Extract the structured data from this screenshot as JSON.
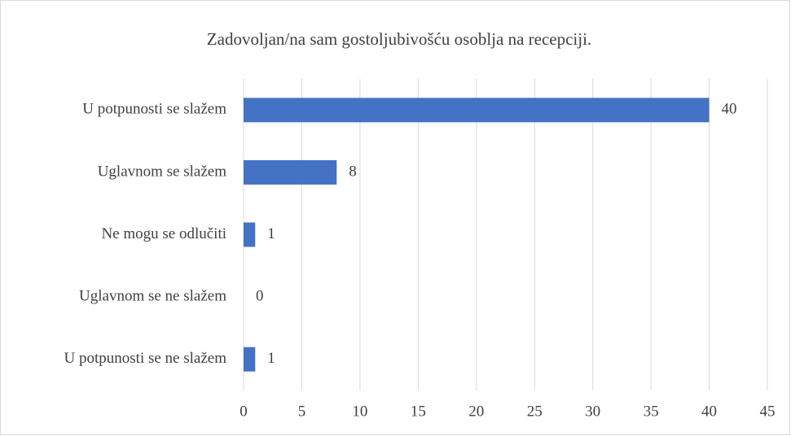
{
  "chart_data": {
    "type": "bar",
    "orientation": "horizontal",
    "title": "Zadovoljan/na sam gostoljubivošću osoblja na recepciji.",
    "categories": [
      "U potpunosti se slažem",
      "Uglavnom se slažem",
      "Ne mogu se odlučiti",
      "Uglavnom se ne slažem",
      "U potpunosti se ne slažem"
    ],
    "values": [
      40,
      8,
      1,
      0,
      1
    ],
    "color": "#4472c4",
    "xlim": [
      0,
      45
    ],
    "xticks": [
      0,
      5,
      10,
      15,
      20,
      25,
      30,
      35,
      40,
      45
    ],
    "grid": true
  }
}
